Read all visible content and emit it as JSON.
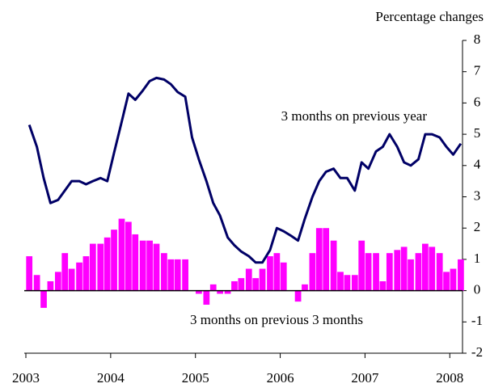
{
  "chart_data": {
    "type": "bar-line",
    "y_axis_label": "Percentage changes",
    "x": [
      2003.04,
      2003.13,
      2003.21,
      2003.29,
      2003.38,
      2003.46,
      2003.54,
      2003.63,
      2003.71,
      2003.79,
      2003.88,
      2003.96,
      2004.04,
      2004.13,
      2004.21,
      2004.29,
      2004.38,
      2004.46,
      2004.54,
      2004.63,
      2004.71,
      2004.79,
      2004.88,
      2004.96,
      2005.04,
      2005.13,
      2005.21,
      2005.29,
      2005.38,
      2005.46,
      2005.54,
      2005.63,
      2005.71,
      2005.79,
      2005.88,
      2005.96,
      2006.04,
      2006.13,
      2006.21,
      2006.29,
      2006.38,
      2006.46,
      2006.54,
      2006.63,
      2006.71,
      2006.79,
      2006.88,
      2006.96,
      2007.04,
      2007.13,
      2007.21,
      2007.29,
      2007.38,
      2007.46,
      2007.54,
      2007.63,
      2007.71,
      2007.79,
      2007.88,
      2007.96,
      2008.04,
      2008.13
    ],
    "series": [
      {
        "name": "3 months on previous 3 months",
        "kind": "bar",
        "color": "#ff00ff",
        "values": [
          1.1,
          0.5,
          -0.55,
          0.3,
          0.6,
          1.2,
          0.7,
          0.9,
          1.1,
          1.5,
          1.5,
          1.7,
          1.95,
          2.3,
          2.2,
          1.8,
          1.6,
          1.6,
          1.5,
          1.2,
          1.0,
          1.0,
          1.0,
          0,
          -0.1,
          -0.45,
          0.2,
          -0.1,
          -0.1,
          0.3,
          0.4,
          0.7,
          0.4,
          0.7,
          1.1,
          1.2,
          0.9,
          0,
          -0.35,
          0.2,
          1.2,
          2.0,
          2.0,
          1.6,
          0.6,
          0.5,
          0.5,
          1.6,
          1.2,
          1.2,
          0.3,
          1.2,
          1.3,
          1.4,
          1.0,
          1.2,
          1.5,
          1.4,
          1.2,
          0.6,
          0.7,
          1.0
        ]
      },
      {
        "name": "3 months on previous year",
        "kind": "line",
        "color": "#000066",
        "values": [
          5.3,
          4.6,
          3.6,
          2.8,
          2.9,
          3.2,
          3.5,
          3.5,
          3.4,
          3.5,
          3.6,
          3.5,
          4.4,
          5.4,
          6.3,
          6.1,
          6.4,
          6.7,
          6.8,
          6.75,
          6.6,
          6.35,
          6.2,
          4.9,
          4.2,
          3.5,
          2.8,
          2.4,
          1.7,
          1.45,
          1.25,
          1.1,
          0.9,
          0.9,
          1.3,
          2.0,
          1.9,
          1.75,
          1.6,
          2.3,
          3.0,
          3.5,
          3.8,
          3.9,
          3.6,
          3.6,
          3.2,
          4.1,
          3.9,
          4.45,
          4.6,
          5.0,
          4.6,
          4.1,
          4.0,
          4.2,
          5.0,
          5.0,
          4.9,
          4.6,
          4.35,
          4.7
        ]
      }
    ],
    "xlim": [
      2003,
      2008.15
    ],
    "xticks": [
      2003,
      2004,
      2005,
      2006,
      2007,
      2008
    ],
    "ylim": [
      -2,
      8
    ],
    "yticks": [
      -2,
      -1,
      0,
      1,
      2,
      3,
      4,
      5,
      6,
      7,
      8
    ]
  }
}
